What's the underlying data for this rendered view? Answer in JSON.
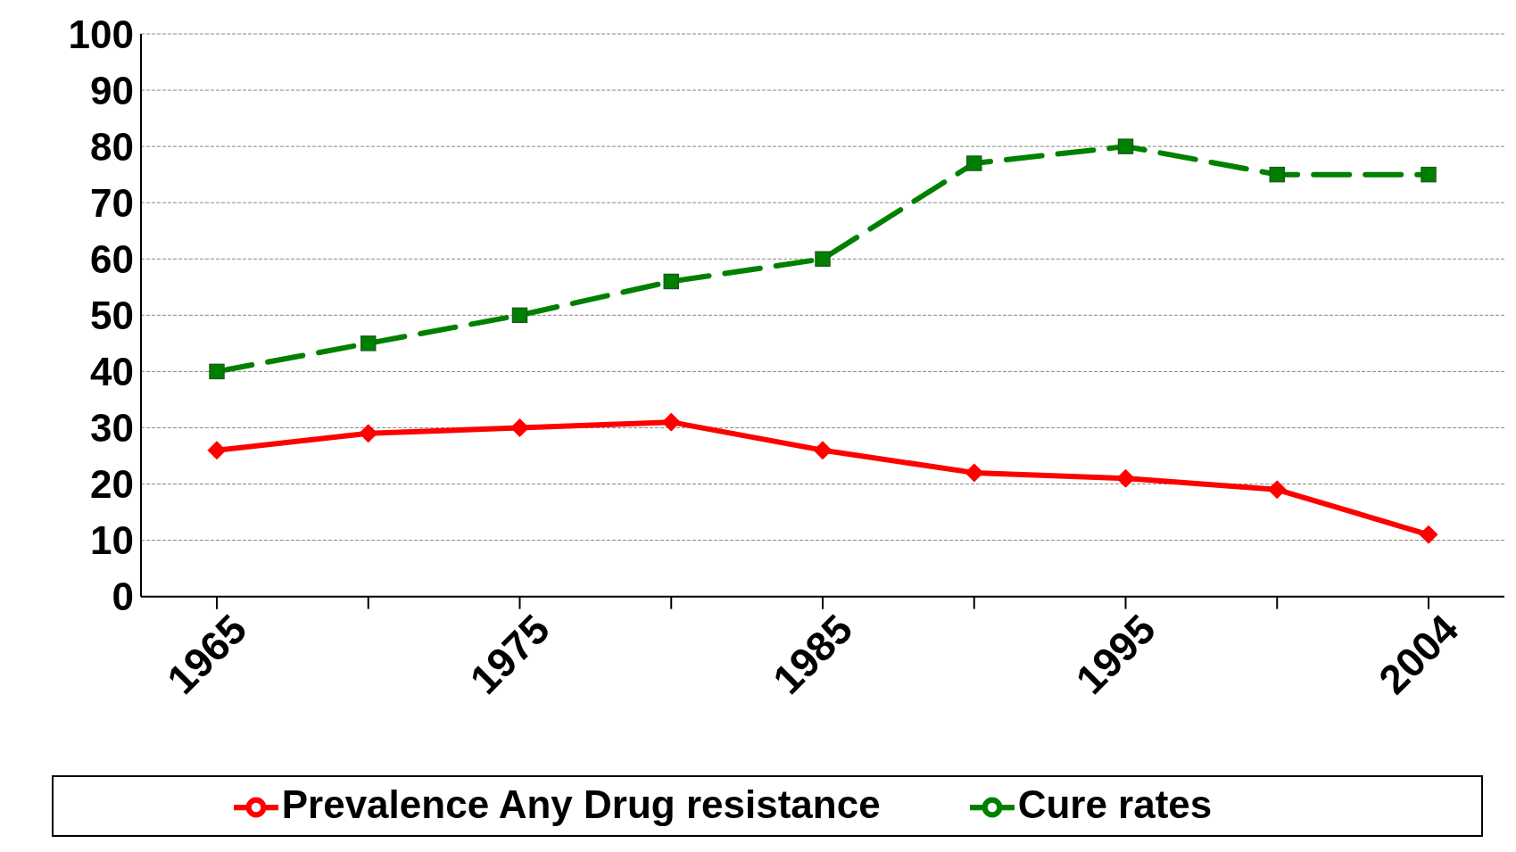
{
  "chart_data": {
    "type": "line",
    "categories": [
      "1965",
      null,
      "1975",
      null,
      "1985",
      null,
      "1995",
      null,
      "2004"
    ],
    "series": [
      {
        "name": "Prevalence Any Drug resistance",
        "color": "#ff0000",
        "marker": "diamond",
        "line_style": "solid",
        "values": [
          26,
          29,
          30,
          31,
          26,
          22,
          21,
          19,
          11
        ]
      },
      {
        "name": "Cure rates",
        "color": "#008000",
        "marker": "square",
        "line_style": "dashed",
        "values": [
          40,
          45,
          50,
          56,
          60,
          77,
          80,
          75,
          75
        ]
      }
    ],
    "ylim": [
      0,
      100
    ],
    "yticks": [
      0,
      10,
      20,
      30,
      40,
      50,
      60,
      70,
      80,
      90,
      100
    ],
    "grid": "y",
    "legend": "bottom"
  }
}
